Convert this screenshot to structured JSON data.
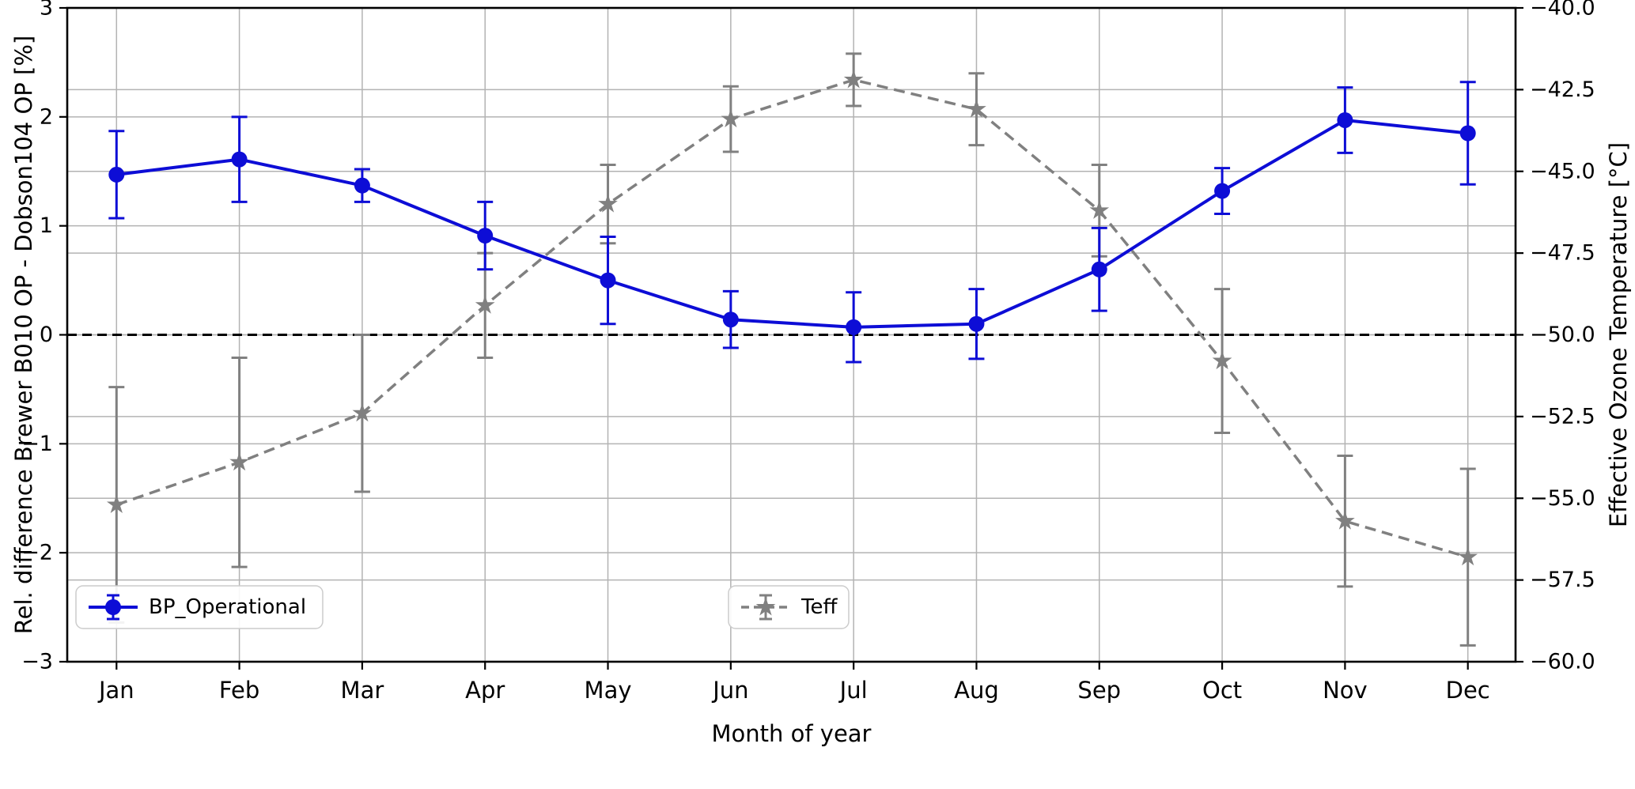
{
  "chart_data": {
    "type": "line",
    "title": "",
    "xlabel": "Month of year",
    "ylabel_left": "Rel. difference Brewer B010 OP - Dobson104 OP [%]",
    "ylabel_right": "Effective Ozone Temperature [°C]",
    "categories": [
      "Jan",
      "Feb",
      "Mar",
      "Apr",
      "May",
      "Jun",
      "Jul",
      "Aug",
      "Sep",
      "Oct",
      "Nov",
      "Dec"
    ],
    "grid": true,
    "legend_position": "bottom",
    "axes": {
      "left": {
        "min": -3,
        "max": 3,
        "ticks": [
          3,
          2,
          1,
          0,
          -1,
          -2,
          -3
        ],
        "tick_labels": [
          "3",
          "2",
          "1",
          "0",
          "−1",
          "−2",
          "−3"
        ]
      },
      "right": {
        "min": -60,
        "max": -40,
        "ticks": [
          -40,
          -42.5,
          -45,
          -47.5,
          -50,
          -52.5,
          -55,
          -57.5,
          -60
        ],
        "tick_labels": [
          "−40.0",
          "−42.5",
          "−45.0",
          "−47.5",
          "−50.0",
          "−52.5",
          "−55.0",
          "−57.5",
          "−60.0"
        ]
      }
    },
    "zero_line": {
      "axis": "left",
      "value": 0,
      "style": "dashed",
      "color": "#000000"
    },
    "series": [
      {
        "name": "BP_Operational",
        "axis": "left",
        "color": "#0d0dd6",
        "marker": "circle",
        "line_style": "solid",
        "values": [
          1.47,
          1.61,
          1.37,
          0.91,
          0.5,
          0.14,
          0.07,
          0.1,
          0.6,
          1.32,
          1.97,
          1.85
        ],
        "errors": [
          0.4,
          0.39,
          0.15,
          0.31,
          0.4,
          0.26,
          0.32,
          0.32,
          0.38,
          0.21,
          0.3,
          0.47
        ]
      },
      {
        "name": "Teff",
        "axis": "right",
        "color": "#808080",
        "marker": "star",
        "line_style": "dashed",
        "values": [
          -55.2,
          -53.9,
          -52.4,
          -49.1,
          -46.0,
          -43.4,
          -42.2,
          -43.1,
          -46.2,
          -50.8,
          -55.7,
          -56.8
        ],
        "errors": [
          3.6,
          3.2,
          2.4,
          1.6,
          1.2,
          1.0,
          0.8,
          1.1,
          1.4,
          2.2,
          2.0,
          2.7
        ]
      }
    ]
  }
}
